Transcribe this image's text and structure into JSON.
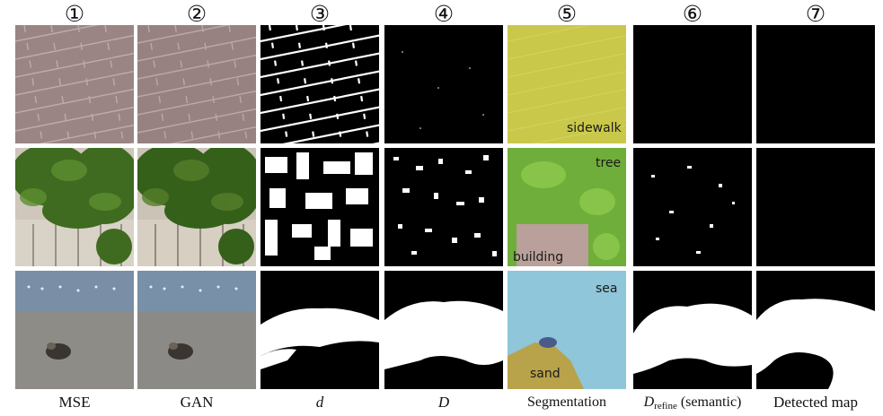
{
  "column_numbers": [
    "①",
    "②",
    "③",
    "④",
    "⑤",
    "⑥",
    "⑦"
  ],
  "column_labels": {
    "mse": "MSE",
    "gan": "GAN",
    "d": "d",
    "D": "D",
    "segmentation": "Segmentation",
    "drefine_main": "D",
    "drefine_sub": "refine",
    "drefine_suffix": "(semantic)",
    "detected": "Detected map"
  },
  "segmentation_labels": {
    "row1": "sidewalk",
    "row2_top": "tree",
    "row2_bottom": "building",
    "row3_top": "sea",
    "row3_bottom": "sand"
  },
  "colors": {
    "sidewalk_overlay": "#c9c84a",
    "tree_overlay": "#6fae3a",
    "building_overlay": "#b9a09a",
    "sea_overlay": "#8fc6d9",
    "sand_overlay": "#b8a24a"
  }
}
